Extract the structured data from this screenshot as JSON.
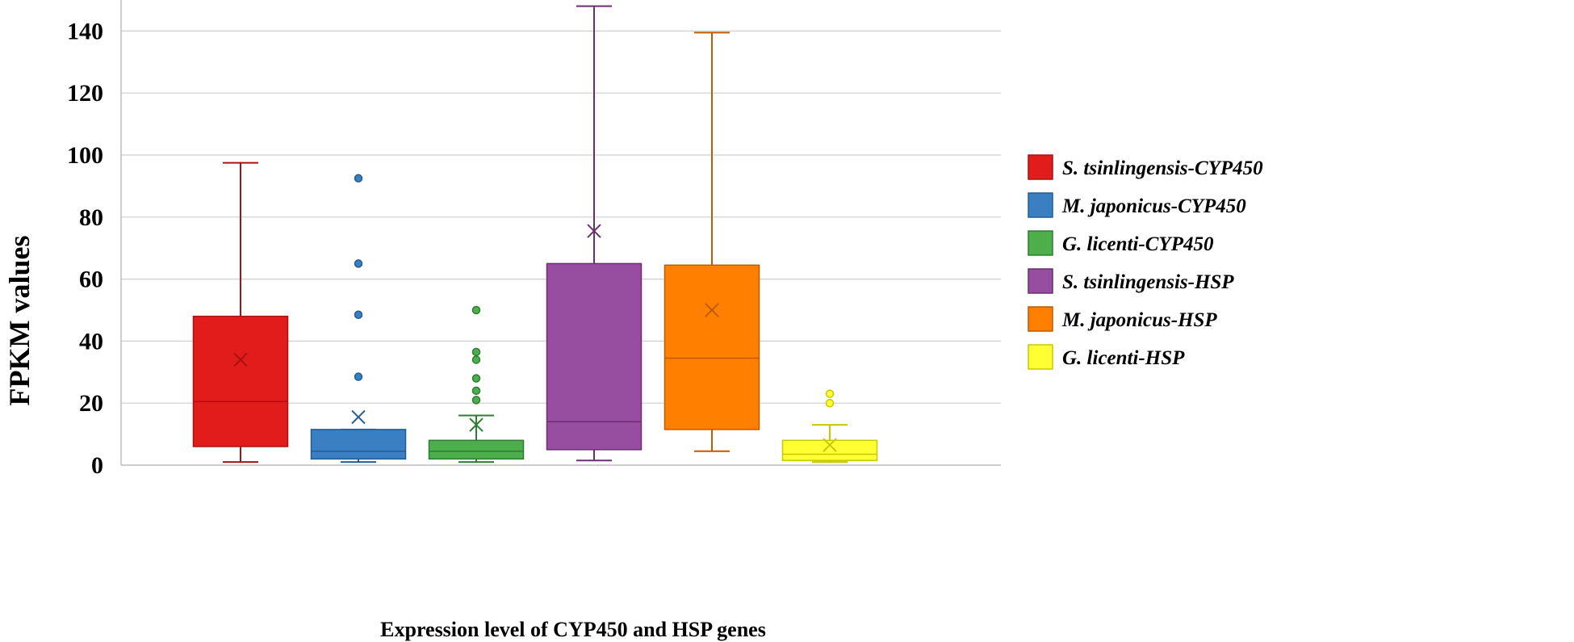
{
  "chart_data": {
    "type": "boxplot",
    "title": "",
    "xlabel": "Expression  level of CYP450 and HSP genes",
    "ylabel": "FPKM values",
    "ylim": [
      0,
      150
    ],
    "yticks": [
      0,
      20,
      40,
      60,
      80,
      100,
      120,
      140
    ],
    "grid": true,
    "legend_position": "right",
    "series": [
      {
        "name": "S. tsinlingensis-CYP450",
        "color": "#E21B1B",
        "border": "#A81212",
        "whisker_low": 1,
        "q1": 6,
        "median": 20.5,
        "q3": 48,
        "whisker_high": 97.5,
        "mean": 34,
        "outliers": []
      },
      {
        "name": "M. japonicus-CYP450",
        "color": "#3A7FC1",
        "border": "#225C93",
        "whisker_low": 1,
        "q1": 2,
        "median": 4.5,
        "q3": 11.5,
        "whisker_high": 11.5,
        "mean": 15.5,
        "outliers": [
          28.5,
          48.5,
          65,
          92.5
        ]
      },
      {
        "name": "G. licenti-CYP450",
        "color": "#4CAF4C",
        "border": "#2E7D32",
        "whisker_low": 1,
        "q1": 2,
        "median": 4.5,
        "q3": 8,
        "whisker_high": 16,
        "mean": 13,
        "outliers": [
          21,
          24,
          28,
          34,
          36.5,
          50
        ]
      },
      {
        "name": "S. tsinlingensis-HSP",
        "color": "#974EA0",
        "border": "#6A2F72",
        "whisker_low": 1.5,
        "q1": 5,
        "median": 14,
        "q3": 65,
        "whisker_high": 148,
        "mean": 75.5,
        "outliers": []
      },
      {
        "name": "M. japonicus-HSP",
        "color": "#FF7F00",
        "border": "#C05A00",
        "whisker_low": 4.5,
        "q1": 11.5,
        "median": 34.5,
        "q3": 64.5,
        "whisker_high": 139.5,
        "mean": 50,
        "outliers": []
      },
      {
        "name": "G. licenti-HSP",
        "color": "#FFFF33",
        "border": "#C8C800",
        "whisker_low": 1,
        "q1": 1.5,
        "median": 3.5,
        "q3": 8,
        "whisker_high": 13,
        "mean": 6.5,
        "outliers": [
          20,
          23
        ]
      }
    ]
  }
}
